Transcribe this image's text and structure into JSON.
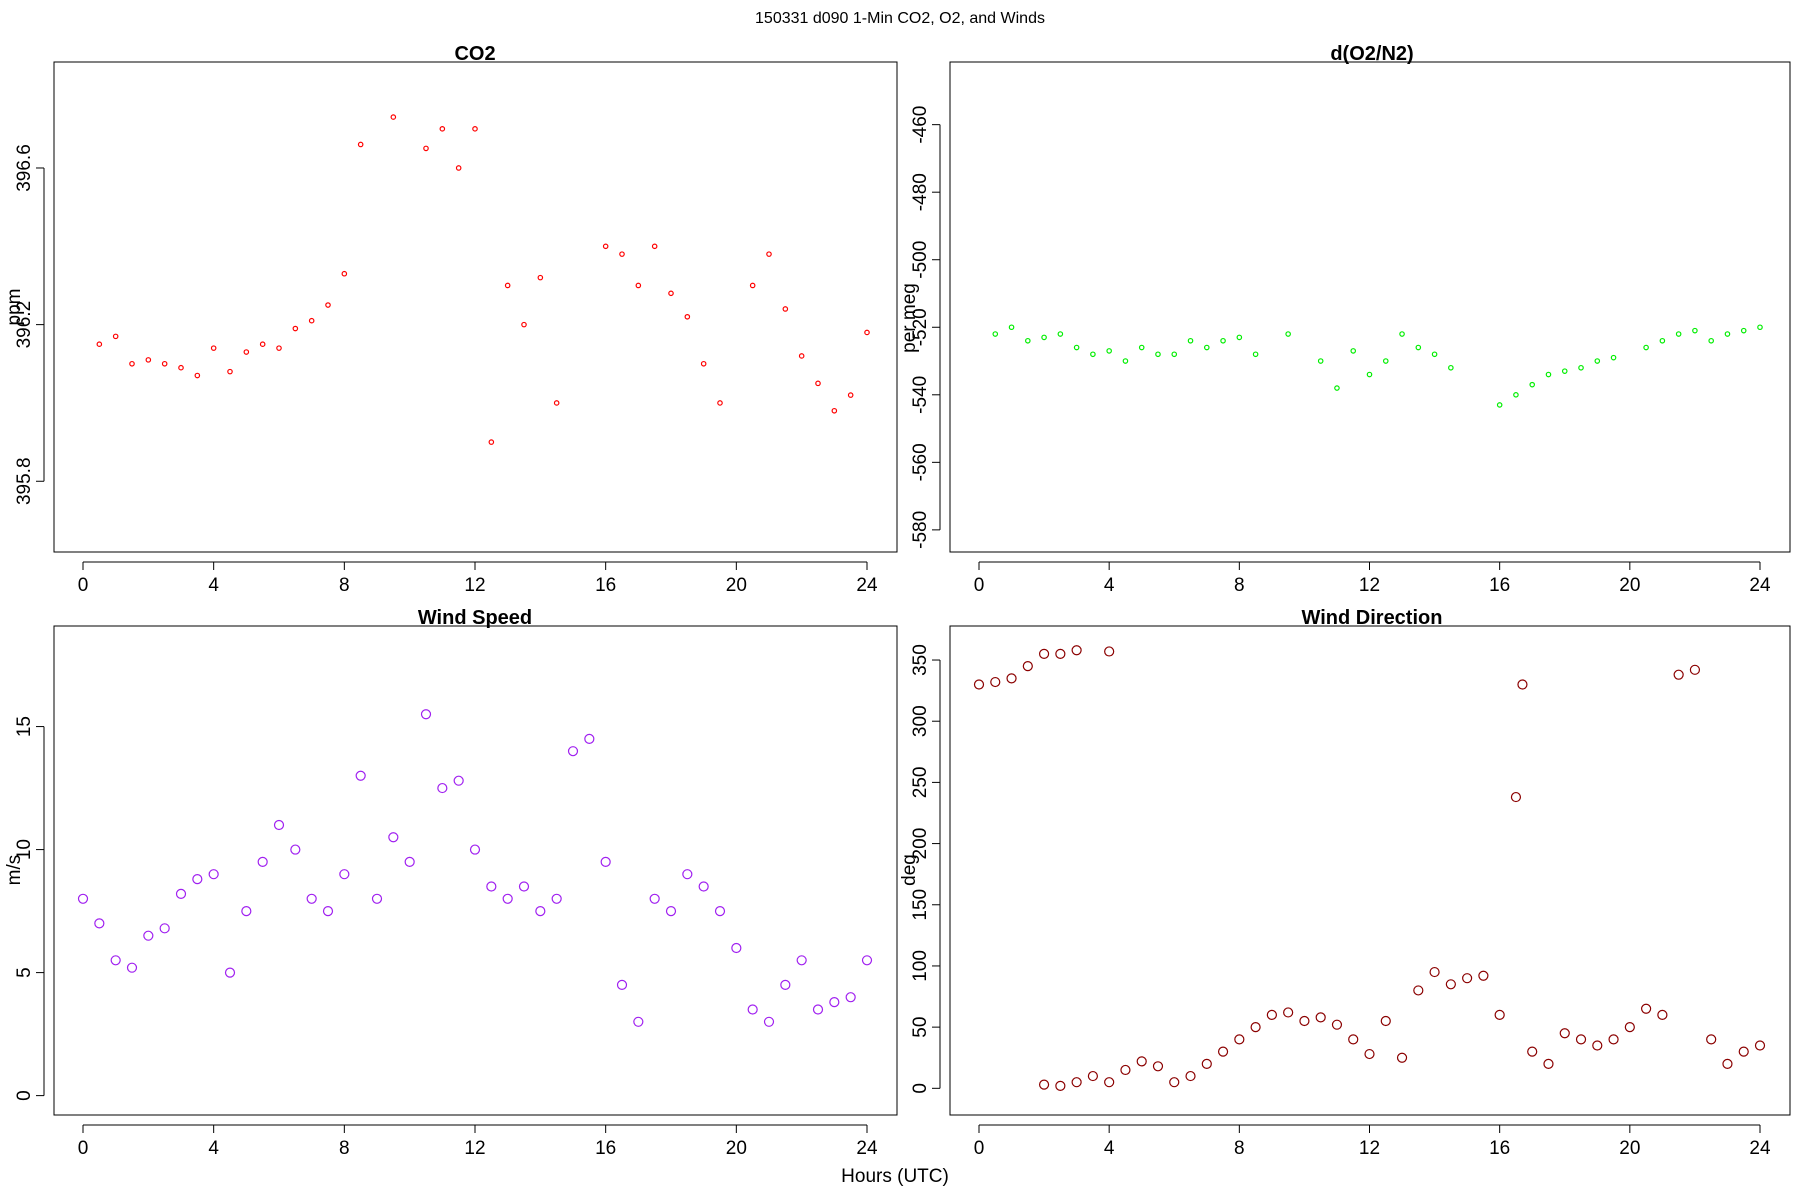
{
  "figure": {
    "suptitle": "150331   d090   1-Min CO2, O2, and Winds",
    "xlabel": "Hours (UTC)"
  },
  "chart_data": [
    {
      "type": "scatter",
      "title": "CO2",
      "xlabel": "",
      "ylabel": "ppm",
      "xlim": [
        0,
        24
      ],
      "ylim": [
        395.65,
        396.84
      ],
      "xticks": [
        0,
        4,
        8,
        12,
        16,
        20,
        24
      ],
      "yticks": [
        395.8,
        396.2,
        396.6
      ],
      "ytick_labels": [
        "395.8",
        "396.2",
        "396.6"
      ],
      "color": "#ff0000",
      "marker": "small-circle",
      "points": [
        [
          0.5,
          396.15
        ],
        [
          1.0,
          396.17
        ],
        [
          1.5,
          396.1
        ],
        [
          2.0,
          396.11
        ],
        [
          2.5,
          396.1
        ],
        [
          3.0,
          396.09
        ],
        [
          3.5,
          396.07
        ],
        [
          4.0,
          396.14
        ],
        [
          4.5,
          396.08
        ],
        [
          5.0,
          396.13
        ],
        [
          5.5,
          396.15
        ],
        [
          6.0,
          396.14
        ],
        [
          6.5,
          396.19
        ],
        [
          7.0,
          396.21
        ],
        [
          7.5,
          396.25
        ],
        [
          8.0,
          396.33
        ],
        [
          8.5,
          396.66
        ],
        [
          9.5,
          396.73
        ],
        [
          10.5,
          396.65
        ],
        [
          11.0,
          396.7
        ],
        [
          11.5,
          396.6
        ],
        [
          12.0,
          396.7
        ],
        [
          12.5,
          395.9
        ],
        [
          13.0,
          396.3
        ],
        [
          13.5,
          396.2
        ],
        [
          14.0,
          396.32
        ],
        [
          14.5,
          396.0
        ],
        [
          16.0,
          396.4
        ],
        [
          16.5,
          396.38
        ],
        [
          17.0,
          396.3
        ],
        [
          17.5,
          396.4
        ],
        [
          18.0,
          396.28
        ],
        [
          18.5,
          396.22
        ],
        [
          19.0,
          396.1
        ],
        [
          19.5,
          396.0
        ],
        [
          20.5,
          396.3
        ],
        [
          21.0,
          396.38
        ],
        [
          21.5,
          396.24
        ],
        [
          22.0,
          396.12
        ],
        [
          22.5,
          396.05
        ],
        [
          23.0,
          395.98
        ],
        [
          23.5,
          396.02
        ],
        [
          24.0,
          396.18
        ]
      ]
    },
    {
      "type": "scatter",
      "title": "d(O2/N2)",
      "xlabel": "",
      "ylabel": "per meg",
      "xlim": [
        0,
        24
      ],
      "ylim": [
        -583,
        -445
      ],
      "xticks": [
        0,
        4,
        8,
        12,
        16,
        20,
        24
      ],
      "yticks": [
        -580,
        -560,
        -540,
        -520,
        -500,
        -480,
        -460
      ],
      "ytick_labels": [
        "-580",
        "-560",
        "-540",
        "-520",
        "-500",
        "-480",
        "-460"
      ],
      "color": "#00ee00",
      "marker": "small-circle",
      "points": [
        [
          0.5,
          -522
        ],
        [
          1.0,
          -520
        ],
        [
          1.5,
          -524
        ],
        [
          2.0,
          -523
        ],
        [
          2.5,
          -522
        ],
        [
          3.0,
          -526
        ],
        [
          3.5,
          -528
        ],
        [
          4.0,
          -527
        ],
        [
          4.5,
          -530
        ],
        [
          5.0,
          -526
        ],
        [
          5.5,
          -528
        ],
        [
          6.0,
          -528
        ],
        [
          6.5,
          -524
        ],
        [
          7.0,
          -526
        ],
        [
          7.5,
          -524
        ],
        [
          8.0,
          -523
        ],
        [
          8.5,
          -528
        ],
        [
          9.5,
          -522
        ],
        [
          10.5,
          -530
        ],
        [
          11.0,
          -538
        ],
        [
          11.5,
          -527
        ],
        [
          12.0,
          -534
        ],
        [
          12.5,
          -530
        ],
        [
          13.0,
          -522
        ],
        [
          13.5,
          -526
        ],
        [
          14.0,
          -528
        ],
        [
          14.5,
          -532
        ],
        [
          16.0,
          -543
        ],
        [
          16.5,
          -540
        ],
        [
          17.0,
          -537
        ],
        [
          17.5,
          -534
        ],
        [
          18.0,
          -533
        ],
        [
          18.5,
          -532
        ],
        [
          19.0,
          -530
        ],
        [
          19.5,
          -529
        ],
        [
          20.5,
          -526
        ],
        [
          21.0,
          -524
        ],
        [
          21.5,
          -522
        ],
        [
          22.0,
          -521
        ],
        [
          22.5,
          -524
        ],
        [
          23.0,
          -522
        ],
        [
          23.5,
          -521
        ],
        [
          24.0,
          -520
        ]
      ]
    },
    {
      "type": "scatter",
      "title": "Wind Speed",
      "xlabel": "",
      "ylabel": "m/s",
      "xlim": [
        0,
        24
      ],
      "ylim": [
        -0.3,
        18.6
      ],
      "xticks": [
        0,
        4,
        8,
        12,
        16,
        20,
        24
      ],
      "yticks": [
        0,
        5,
        10,
        15
      ],
      "ytick_labels": [
        "0",
        "5",
        "10",
        "15"
      ],
      "color": "#a020f0",
      "marker": "circle",
      "points": [
        [
          0.0,
          8.0
        ],
        [
          0.5,
          7.0
        ],
        [
          1.0,
          5.5
        ],
        [
          1.5,
          5.2
        ],
        [
          2.0,
          6.5
        ],
        [
          2.5,
          6.8
        ],
        [
          3.0,
          8.2
        ],
        [
          3.5,
          8.8
        ],
        [
          4.0,
          9.0
        ],
        [
          4.5,
          5.0
        ],
        [
          5.0,
          7.5
        ],
        [
          5.5,
          9.5
        ],
        [
          6.0,
          11.0
        ],
        [
          6.5,
          10.0
        ],
        [
          7.0,
          8.0
        ],
        [
          7.5,
          7.5
        ],
        [
          8.0,
          9.0
        ],
        [
          8.5,
          13.0
        ],
        [
          9.0,
          8.0
        ],
        [
          9.5,
          10.5
        ],
        [
          10.0,
          9.5
        ],
        [
          10.5,
          15.5
        ],
        [
          11.0,
          12.5
        ],
        [
          11.5,
          12.8
        ],
        [
          12.0,
          10.0
        ],
        [
          12.5,
          8.5
        ],
        [
          13.0,
          8.0
        ],
        [
          13.5,
          8.5
        ],
        [
          14.0,
          7.5
        ],
        [
          14.5,
          8.0
        ],
        [
          15.0,
          14.0
        ],
        [
          15.5,
          14.5
        ],
        [
          16.0,
          9.5
        ],
        [
          16.5,
          4.5
        ],
        [
          17.0,
          3.0
        ],
        [
          17.5,
          8.0
        ],
        [
          18.0,
          7.5
        ],
        [
          18.5,
          9.0
        ],
        [
          19.0,
          8.5
        ],
        [
          19.5,
          7.5
        ],
        [
          20.0,
          6.0
        ],
        [
          20.5,
          3.5
        ],
        [
          21.0,
          3.0
        ],
        [
          21.5,
          4.5
        ],
        [
          22.0,
          5.5
        ],
        [
          22.5,
          3.5
        ],
        [
          23.0,
          3.8
        ],
        [
          23.5,
          4.0
        ],
        [
          24.0,
          5.5
        ]
      ]
    },
    {
      "type": "scatter",
      "title": "Wind Direction",
      "xlabel": "",
      "ylabel": "deg",
      "xlim": [
        0,
        24
      ],
      "ylim": [
        -12,
        368
      ],
      "xticks": [
        0,
        4,
        8,
        12,
        16,
        20,
        24
      ],
      "yticks": [
        0,
        50,
        100,
        150,
        200,
        250,
        300,
        350
      ],
      "ytick_labels": [
        "0",
        "50",
        "100",
        "150",
        "200",
        "250",
        "300",
        "350"
      ],
      "color": "#8b0000",
      "marker": "circle",
      "points": [
        [
          0.0,
          330
        ],
        [
          0.5,
          332
        ],
        [
          1.0,
          335
        ],
        [
          1.5,
          345
        ],
        [
          2.0,
          355
        ],
        [
          2.5,
          355
        ],
        [
          3.0,
          358
        ],
        [
          4.0,
          357
        ],
        [
          2.0,
          3
        ],
        [
          2.5,
          2
        ],
        [
          3.0,
          5
        ],
        [
          3.5,
          10
        ],
        [
          4.0,
          5
        ],
        [
          4.5,
          15
        ],
        [
          5.0,
          22
        ],
        [
          5.5,
          18
        ],
        [
          6.0,
          5
        ],
        [
          6.5,
          10
        ],
        [
          7.0,
          20
        ],
        [
          7.5,
          30
        ],
        [
          8.0,
          40
        ],
        [
          8.5,
          50
        ],
        [
          9.0,
          60
        ],
        [
          9.5,
          62
        ],
        [
          10.0,
          55
        ],
        [
          10.5,
          58
        ],
        [
          11.0,
          52
        ],
        [
          11.5,
          40
        ],
        [
          12.0,
          28
        ],
        [
          12.5,
          55
        ],
        [
          13.0,
          25
        ],
        [
          13.5,
          80
        ],
        [
          14.0,
          95
        ],
        [
          14.5,
          85
        ],
        [
          15.0,
          90
        ],
        [
          15.5,
          92
        ],
        [
          16.0,
          60
        ],
        [
          16.5,
          238
        ],
        [
          16.7,
          330
        ],
        [
          17.0,
          30
        ],
        [
          17.5,
          20
        ],
        [
          18.0,
          45
        ],
        [
          18.5,
          40
        ],
        [
          19.0,
          35
        ],
        [
          19.5,
          40
        ],
        [
          20.0,
          50
        ],
        [
          20.5,
          65
        ],
        [
          21.0,
          60
        ],
        [
          21.5,
          338
        ],
        [
          22.0,
          342
        ],
        [
          22.5,
          40
        ],
        [
          23.0,
          20
        ],
        [
          23.5,
          30
        ],
        [
          24.0,
          35
        ]
      ]
    }
  ]
}
